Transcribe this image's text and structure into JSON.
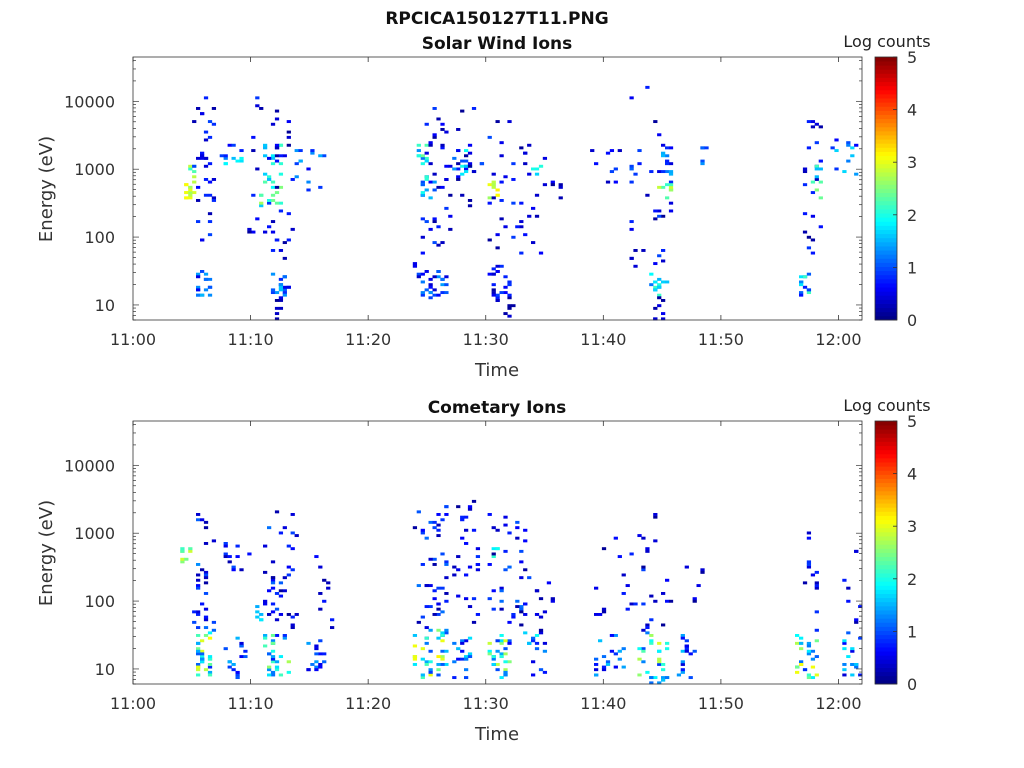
{
  "figure_title": "RPCICA150127T11.PNG",
  "chart_data": [
    {
      "type": "heatmap",
      "title": "Solar Wind Ions",
      "xlabel": "Time",
      "ylabel": "Energy (eV)",
      "x_ticks": [
        "11:00",
        "11:10",
        "11:20",
        "11:30",
        "11:40",
        "11:50",
        "12:00"
      ],
      "x_range_min": [
        0,
        62
      ],
      "y_scale": "log",
      "y_ticks": [
        10,
        100,
        1000,
        10000
      ],
      "y_range": [
        6,
        45000
      ],
      "colorbar": {
        "label": "Log counts",
        "range": [
          0,
          5
        ],
        "ticks": [
          0,
          1,
          2,
          3,
          4,
          5
        ],
        "colormap": "jet"
      },
      "clusters": [
        {
          "t": [
            4.2,
            5.0
          ],
          "e": [
            350,
            700
          ],
          "v": [
            2.6,
            3.2
          ],
          "n": 14
        },
        {
          "t": [
            4.8,
            5.2
          ],
          "e": [
            800,
            1200
          ],
          "v": [
            1.8,
            2.8
          ],
          "n": 5
        },
        {
          "t": [
            5.2,
            6.4
          ],
          "e": [
            14,
            35
          ],
          "v": [
            0.5,
            1.8
          ],
          "n": 18
        },
        {
          "t": [
            5.0,
            6.8
          ],
          "e": [
            40,
            12000
          ],
          "v": [
            0.2,
            1.0
          ],
          "n": 35
        },
        {
          "t": [
            7.5,
            9.0
          ],
          "e": [
            1200,
            2500
          ],
          "v": [
            0.6,
            2.0
          ],
          "n": 12
        },
        {
          "t": [
            9.5,
            11.5
          ],
          "e": [
            120,
            13000
          ],
          "v": [
            0.1,
            0.9
          ],
          "n": 14
        },
        {
          "t": [
            10.8,
            12.4
          ],
          "e": [
            300,
            900
          ],
          "v": [
            1.5,
            3.2
          ],
          "n": 18
        },
        {
          "t": [
            11.0,
            12.6
          ],
          "e": [
            1200,
            2500
          ],
          "v": [
            1.0,
            2.2
          ],
          "n": 10
        },
        {
          "t": [
            11.5,
            13.0
          ],
          "e": [
            14,
            35
          ],
          "v": [
            0.3,
            1.6
          ],
          "n": 18
        },
        {
          "t": [
            11.8,
            12.8
          ],
          "e": [
            6,
            14
          ],
          "v": [
            0.1,
            0.6
          ],
          "n": 8
        },
        {
          "t": [
            11.5,
            13.5
          ],
          "e": [
            40,
            8000
          ],
          "v": [
            0.1,
            0.8
          ],
          "n": 30
        },
        {
          "t": [
            13.5,
            16.0
          ],
          "e": [
            500,
            2300
          ],
          "v": [
            0.4,
            1.6
          ],
          "n": 14
        },
        {
          "t": [
            23.6,
            24.2
          ],
          "e": [
            35,
            45
          ],
          "v": [
            0.3,
            0.6
          ],
          "n": 2
        },
        {
          "t": [
            24.2,
            26.4
          ],
          "e": [
            14,
            35
          ],
          "v": [
            0.2,
            1.4
          ],
          "n": 28
        },
        {
          "t": [
            24.2,
            25.2
          ],
          "e": [
            1200,
            2500
          ],
          "v": [
            1.2,
            2.4
          ],
          "n": 10
        },
        {
          "t": [
            24.2,
            26.8
          ],
          "e": [
            60,
            15000
          ],
          "v": [
            0.1,
            1.0
          ],
          "n": 40
        },
        {
          "t": [
            24.4,
            25.6
          ],
          "e": [
            350,
            800
          ],
          "v": [
            0.8,
            2.2
          ],
          "n": 10
        },
        {
          "t": [
            27.0,
            29.4
          ],
          "e": [
            900,
            2300
          ],
          "v": [
            0.4,
            2.0
          ],
          "n": 18
        },
        {
          "t": [
            27.0,
            29.0
          ],
          "e": [
            300,
            9000
          ],
          "v": [
            0.1,
            0.8
          ],
          "n": 16
        },
        {
          "t": [
            30.2,
            32.0
          ],
          "e": [
            12,
            40
          ],
          "v": [
            0.1,
            1.0
          ],
          "n": 24
        },
        {
          "t": [
            31.4,
            32.2
          ],
          "e": [
            6,
            12
          ],
          "v": [
            0.1,
            0.5
          ],
          "n": 5
        },
        {
          "t": [
            30.2,
            31.2
          ],
          "e": [
            400,
            700
          ],
          "v": [
            2.6,
            3.2
          ],
          "n": 8
        },
        {
          "t": [
            30.0,
            35.0
          ],
          "e": [
            60,
            9000
          ],
          "v": [
            0.1,
            1.0
          ],
          "n": 40
        },
        {
          "t": [
            33.8,
            34.6
          ],
          "e": [
            900,
            1300
          ],
          "v": [
            1.5,
            2.2
          ],
          "n": 4
        },
        {
          "t": [
            35.5,
            36.5
          ],
          "e": [
            300,
            2200
          ],
          "v": [
            0.1,
            0.6
          ],
          "n": 5
        },
        {
          "t": [
            39.0,
            43.0
          ],
          "e": [
            600,
            2200
          ],
          "v": [
            0.2,
            1.2
          ],
          "n": 14
        },
        {
          "t": [
            42.0,
            46.0
          ],
          "e": [
            40,
            18000
          ],
          "v": [
            0.1,
            1.0
          ],
          "n": 30
        },
        {
          "t": [
            43.8,
            45.2
          ],
          "e": [
            14,
            30
          ],
          "v": [
            1.2,
            2.2
          ],
          "n": 14
        },
        {
          "t": [
            44.2,
            45.0
          ],
          "e": [
            6,
            14
          ],
          "v": [
            0.1,
            0.6
          ],
          "n": 8
        },
        {
          "t": [
            44.6,
            45.6
          ],
          "e": [
            400,
            700
          ],
          "v": [
            2.0,
            3.0
          ],
          "n": 8
        },
        {
          "t": [
            44.6,
            45.6
          ],
          "e": [
            900,
            2200
          ],
          "v": [
            0.6,
            1.6
          ],
          "n": 10
        },
        {
          "t": [
            48.0,
            48.6
          ],
          "e": [
            900,
            2300
          ],
          "v": [
            0.6,
            1.4
          ],
          "n": 5
        },
        {
          "t": [
            56.6,
            57.6
          ],
          "e": [
            14,
            30
          ],
          "v": [
            0.6,
            2.2
          ],
          "n": 14
        },
        {
          "t": [
            56.8,
            58.6
          ],
          "e": [
            60,
            8000
          ],
          "v": [
            0.1,
            0.9
          ],
          "n": 22
        },
        {
          "t": [
            57.6,
            58.4
          ],
          "e": [
            400,
            1200
          ],
          "v": [
            1.5,
            2.6
          ],
          "n": 8
        },
        {
          "t": [
            59.0,
            61.6
          ],
          "e": [
            900,
            3500
          ],
          "v": [
            0.6,
            1.8
          ],
          "n": 12
        }
      ]
    },
    {
      "type": "heatmap",
      "title": "Cometary Ions",
      "xlabel": "Time",
      "ylabel": "Energy (eV)",
      "x_ticks": [
        "11:00",
        "11:10",
        "11:20",
        "11:30",
        "11:40",
        "11:50",
        "12:00"
      ],
      "x_range_min": [
        0,
        62
      ],
      "y_scale": "log",
      "y_ticks": [
        10,
        100,
        1000,
        10000
      ],
      "y_range": [
        6,
        45000
      ],
      "colorbar": {
        "label": "Log counts",
        "range": [
          0,
          5
        ],
        "ticks": [
          0,
          1,
          2,
          3,
          4,
          5
        ],
        "colormap": "jet"
      },
      "clusters": [
        {
          "t": [
            4.0,
            5.0
          ],
          "e": [
            400,
            650
          ],
          "v": [
            2.0,
            3.0
          ],
          "n": 8
        },
        {
          "t": [
            5.2,
            6.6
          ],
          "e": [
            8,
            35
          ],
          "v": [
            0.8,
            3.2
          ],
          "n": 32
        },
        {
          "t": [
            5.0,
            6.8
          ],
          "e": [
            40,
            2200
          ],
          "v": [
            0.1,
            1.4
          ],
          "n": 30
        },
        {
          "t": [
            7.8,
            9.5
          ],
          "e": [
            8,
            30
          ],
          "v": [
            0.4,
            1.6
          ],
          "n": 16
        },
        {
          "t": [
            7.5,
            10.0
          ],
          "e": [
            300,
            1000
          ],
          "v": [
            0.2,
            1.0
          ],
          "n": 12
        },
        {
          "t": [
            10.0,
            11.0
          ],
          "e": [
            40,
            90
          ],
          "v": [
            1.2,
            2.2
          ],
          "n": 6
        },
        {
          "t": [
            11.0,
            13.0
          ],
          "e": [
            8,
            35
          ],
          "v": [
            0.6,
            2.8
          ],
          "n": 30
        },
        {
          "t": [
            11.0,
            13.6
          ],
          "e": [
            40,
            2500
          ],
          "v": [
            0.1,
            1.2
          ],
          "n": 40
        },
        {
          "t": [
            14.6,
            16.0
          ],
          "e": [
            8,
            30
          ],
          "v": [
            0.4,
            1.6
          ],
          "n": 16
        },
        {
          "t": [
            15.4,
            16.8
          ],
          "e": [
            40,
            500
          ],
          "v": [
            0.1,
            0.8
          ],
          "n": 10
        },
        {
          "t": [
            23.6,
            26.6
          ],
          "e": [
            8,
            40
          ],
          "v": [
            0.6,
            3.2
          ],
          "n": 40
        },
        {
          "t": [
            23.8,
            26.6
          ],
          "e": [
            40,
            3500
          ],
          "v": [
            0.1,
            1.2
          ],
          "n": 45
        },
        {
          "t": [
            27.2,
            28.6
          ],
          "e": [
            8,
            30
          ],
          "v": [
            0.4,
            1.8
          ],
          "n": 18
        },
        {
          "t": [
            27.0,
            29.4
          ],
          "e": [
            40,
            3500
          ],
          "v": [
            0.1,
            0.9
          ],
          "n": 28
        },
        {
          "t": [
            30.0,
            32.0
          ],
          "e": [
            8,
            35
          ],
          "v": [
            0.6,
            3.0
          ],
          "n": 30
        },
        {
          "t": [
            30.2,
            31.0
          ],
          "e": [
            450,
            650
          ],
          "v": [
            1.8,
            2.8
          ],
          "n": 4
        },
        {
          "t": [
            30.0,
            33.6
          ],
          "e": [
            40,
            2200
          ],
          "v": [
            0.1,
            1.2
          ],
          "n": 40
        },
        {
          "t": [
            33.2,
            35.2
          ],
          "e": [
            8,
            40
          ],
          "v": [
            0.4,
            2.0
          ],
          "n": 16
        },
        {
          "t": [
            34.0,
            36.0
          ],
          "e": [
            40,
            200
          ],
          "v": [
            0.1,
            0.7
          ],
          "n": 10
        },
        {
          "t": [
            39.2,
            41.6
          ],
          "e": [
            8,
            35
          ],
          "v": [
            0.4,
            1.6
          ],
          "n": 20
        },
        {
          "t": [
            39.2,
            42.5
          ],
          "e": [
            40,
            1000
          ],
          "v": [
            0.1,
            0.8
          ],
          "n": 14
        },
        {
          "t": [
            42.8,
            45.2
          ],
          "e": [
            6,
            35
          ],
          "v": [
            0.5,
            3.0
          ],
          "n": 30
        },
        {
          "t": [
            42.6,
            45.6
          ],
          "e": [
            40,
            2200
          ],
          "v": [
            0.1,
            1.0
          ],
          "n": 22
        },
        {
          "t": [
            46.2,
            47.6
          ],
          "e": [
            8,
            35
          ],
          "v": [
            0.4,
            1.6
          ],
          "n": 16
        },
        {
          "t": [
            46.6,
            48.4
          ],
          "e": [
            100,
            450
          ],
          "v": [
            0.1,
            0.6
          ],
          "n": 6
        },
        {
          "t": [
            56.2,
            58.0
          ],
          "e": [
            8,
            40
          ],
          "v": [
            0.6,
            3.2
          ],
          "n": 28
        },
        {
          "t": [
            57.0,
            58.2
          ],
          "e": [
            40,
            1100
          ],
          "v": [
            0.1,
            1.0
          ],
          "n": 12
        },
        {
          "t": [
            60.2,
            61.8
          ],
          "e": [
            8,
            40
          ],
          "v": [
            0.4,
            2.0
          ],
          "n": 18
        },
        {
          "t": [
            60.2,
            62.0
          ],
          "e": [
            40,
            1100
          ],
          "v": [
            0.1,
            0.8
          ],
          "n": 10
        }
      ]
    }
  ]
}
